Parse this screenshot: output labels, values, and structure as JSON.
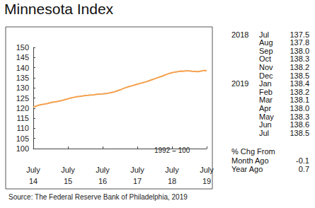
{
  "chart_data": {
    "type": "line",
    "title": "Minnesota Index",
    "categories": [
      "July\n14",
      null,
      null,
      null,
      null,
      null,
      null,
      null,
      null,
      null,
      null,
      null,
      "July\n15",
      null,
      null,
      null,
      null,
      null,
      null,
      null,
      null,
      null,
      null,
      null,
      "July\n16",
      null,
      null,
      null,
      null,
      null,
      null,
      null,
      null,
      null,
      null,
      null,
      "July\n17",
      null,
      null,
      null,
      null,
      null,
      null,
      null,
      null,
      null,
      null,
      null,
      "July\n18",
      null,
      null,
      null,
      null,
      null,
      null,
      null,
      null,
      null,
      null,
      null,
      "July\n19"
    ],
    "values": [
      120.5,
      121,
      121.5,
      121.8,
      122,
      122.3,
      122.7,
      123,
      123.2,
      123.5,
      123.8,
      124.2,
      124.6,
      125,
      125.3,
      125.6,
      125.8,
      126,
      126.2,
      126.3,
      126.5,
      126.6,
      126.8,
      126.9,
      127,
      127.2,
      127.4,
      127.7,
      128,
      128.5,
      129,
      129.6,
      130.1,
      130.6,
      131,
      131.4,
      131.8,
      132.2,
      132.6,
      133,
      133.5,
      134,
      134.5,
      135,
      135.5,
      136,
      136.6,
      137.1,
      137.5,
      137.8,
      138.0,
      138.3,
      138.2,
      138.5,
      138.4,
      138.2,
      138.1,
      138.0,
      138.3,
      138.6,
      138.5
    ],
    "color": "#f4a04c",
    "ylim": [
      100,
      150
    ],
    "yticks": [
      100,
      105,
      110,
      115,
      120,
      125,
      130,
      135,
      140,
      145,
      150
    ],
    "grid": false,
    "annotations": [
      "1992 = 100"
    ],
    "source": "Source: The Federal Reserve Bank of Philadelphia, 2019"
  },
  "table": {
    "rows": [
      [
        "2018",
        "Jul",
        "137.5"
      ],
      [
        null,
        "Aug",
        "137.8"
      ],
      [
        null,
        "Sep",
        "138.0"
      ],
      [
        null,
        "Oct",
        "138.3"
      ],
      [
        null,
        "Nov",
        "138.2"
      ],
      [
        null,
        "Dec",
        "138.5"
      ],
      [
        "2019",
        "Jan",
        "138.4"
      ],
      [
        null,
        "Feb",
        "138.2"
      ],
      [
        null,
        "Mar",
        "138.1"
      ],
      [
        null,
        "Apr",
        "138.0"
      ],
      [
        null,
        "May",
        "138.3"
      ],
      [
        null,
        "Jun",
        "138.6"
      ],
      [
        null,
        "Jul",
        "138.5"
      ]
    ],
    "change_header": "% Chg From",
    "changes": [
      [
        "Month Ago",
        "-0.1"
      ],
      [
        "Year Ago",
        "0.7"
      ]
    ]
  }
}
